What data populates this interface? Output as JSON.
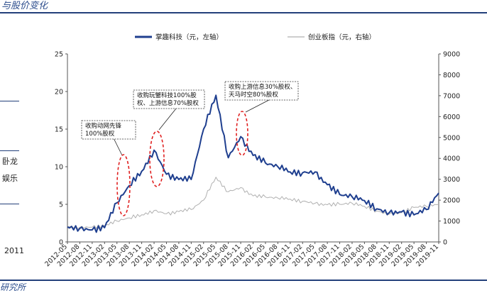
{
  "page": {
    "header_fragment": "与股价变化",
    "left_fragments": [
      "卧龙",
      "娱乐"
    ],
    "left_year_label": "2011",
    "footer_fragment": "研究所",
    "accent_color": "#23407a"
  },
  "chart_data": {
    "type": "line",
    "title": "",
    "legend_position": "top",
    "grid": false,
    "x": [
      "2012-05",
      "2012-08",
      "2012-11",
      "2013-02",
      "2013-05",
      "2013-08",
      "2013-11",
      "2014-02",
      "2014-05",
      "2014-08",
      "2014-11",
      "2015-02",
      "2015-05",
      "2015-08",
      "2015-11",
      "2016-02",
      "2016-05",
      "2016-08",
      "2016-11",
      "2017-02",
      "2017-05",
      "2017-08",
      "2017-11",
      "2018-02",
      "2018-05",
      "2018-08",
      "2018-11",
      "2019-02",
      "2019-05",
      "2019-08",
      "2019-11"
    ],
    "y_left": {
      "ticks": [
        0,
        5,
        10,
        15,
        20,
        25
      ],
      "ylim": [
        0,
        25
      ]
    },
    "y_right": {
      "ticks": [
        0,
        1000,
        2000,
        3000,
        4000,
        5000,
        6000,
        7000,
        8000,
        9000
      ],
      "ylim": [
        0,
        9000
      ]
    },
    "series": [
      {
        "name": "掌趣科技（元，左轴）",
        "axis": "left",
        "color": "#1f3f8f",
        "values": [
          2.0,
          1.8,
          1.6,
          1.9,
          5.2,
          7.5,
          9.4,
          12.2,
          9.0,
          8.3,
          8.3,
          15.0,
          19.5,
          11.2,
          14.0,
          11.5,
          10.5,
          10.0,
          9.3,
          9.2,
          9.3,
          7.6,
          6.3,
          6.0,
          5.5,
          4.4,
          3.9,
          4.0,
          3.6,
          4.3,
          6.5
        ]
      },
      {
        "name": "创业板指（元，右轴）",
        "axis": "right",
        "color": "#b0b0b0",
        "values": [
          750,
          700,
          710,
          760,
          1000,
          1150,
          1300,
          1500,
          1350,
          1450,
          1550,
          2000,
          3100,
          2400,
          2600,
          2200,
          2150,
          2100,
          2050,
          1950,
          1850,
          1780,
          1800,
          1850,
          1700,
          1480,
          1330,
          1400,
          1650,
          1700,
          1800
        ]
      }
    ],
    "annotations": [
      {
        "lines": [
          "收购动网先锋",
          "100%股权"
        ],
        "x": "2013-05"
      },
      {
        "lines": [
          "收购玩蟹科技100%股",
          "权、上游信息70%股权"
        ],
        "x": "2014-02"
      },
      {
        "lines": [
          "收购上游信息30%股权、",
          "天马时空80%股权"
        ],
        "x": "2015-11"
      }
    ]
  }
}
